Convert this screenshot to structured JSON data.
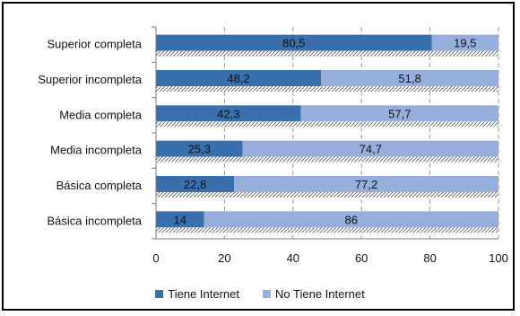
{
  "chart_data": {
    "type": "bar",
    "orientation": "horizontal",
    "stacked": true,
    "categories": [
      "Superior completa",
      "Superior incompleta",
      "Media completa",
      "Media incompleta",
      "Básica completa",
      "Básica incompleta"
    ],
    "series": [
      {
        "name": "Tiene Internet",
        "values": [
          80.5,
          48.2,
          42.3,
          25.3,
          22.8,
          14
        ],
        "labels": [
          "80,5",
          "48,2",
          "42,3",
          "25,3",
          "22,8",
          "14"
        ],
        "color": "#3a6fae"
      },
      {
        "name": "No Tiene Internet",
        "values": [
          19.5,
          51.8,
          57.7,
          74.7,
          77.2,
          86
        ],
        "labels": [
          "19,5",
          "51,8",
          "57,7",
          "74,7",
          "77,2",
          "86"
        ],
        "color": "#95aedb"
      }
    ],
    "xlim": [
      0,
      100
    ],
    "xticks": [
      "0",
      "20",
      "40",
      "60",
      "80",
      "100"
    ],
    "grid": "vertical-dashed",
    "legend_position": "bottom"
  }
}
